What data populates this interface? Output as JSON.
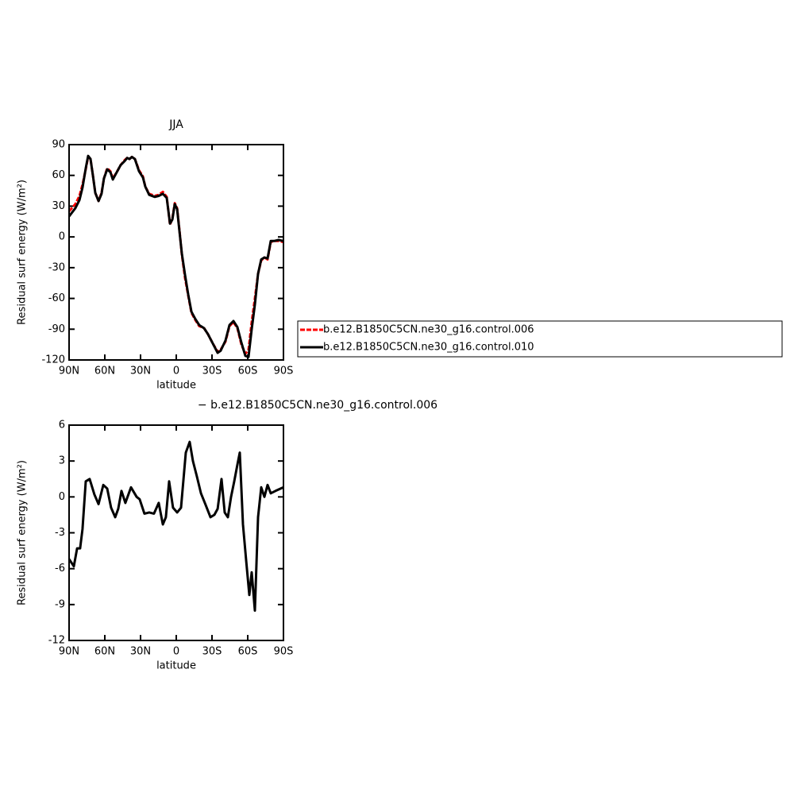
{
  "chart_data": [
    {
      "type": "line",
      "title": "JJA",
      "xlabel": "latitude",
      "ylabel": "Residual surf energy (W/m²)",
      "x": [
        90,
        84.7,
        81.3,
        78.7,
        76,
        74,
        72,
        70,
        68,
        65.3,
        62.7,
        60.7,
        58,
        55.3,
        53.3,
        50,
        46.7,
        43.3,
        41.3,
        39.3,
        37.3,
        34.7,
        31.3,
        28,
        26,
        22.7,
        18,
        14.7,
        11.3,
        8,
        5.3,
        3.3,
        1.3,
        -0.7,
        -2.7,
        -4.7,
        -7.3,
        -10,
        -12.7,
        -16,
        -19.3,
        -23.3,
        -26.7,
        -30.7,
        -34.7,
        -37.3,
        -41.3,
        -44.7,
        -48,
        -51.3,
        -54.7,
        -58,
        -60.7,
        -63.3,
        -66,
        -68.7,
        -71.3,
        -74,
        -76.7,
        -79.3,
        -82,
        -86,
        -90
      ],
      "series": [
        {
          "name": "b.e12.B1850C5CN.ne30_g16.control.006",
          "color": "#ff0000",
          "style": "dashed",
          "values": [
            25,
            32,
            40,
            51,
            66,
            78,
            76,
            60,
            43,
            35,
            43,
            57,
            67,
            64,
            57,
            63,
            70,
            75,
            77,
            76,
            78,
            76,
            65,
            59,
            49,
            42,
            40,
            41,
            44,
            39,
            12,
            18,
            33,
            28,
            6,
            -17,
            -40,
            -57,
            -74,
            -81,
            -87,
            -89,
            -95,
            -104,
            -112,
            -110,
            -102,
            -87,
            -83,
            -89,
            -105,
            -114,
            -110,
            -83,
            -60,
            -36,
            -23,
            -20,
            -22,
            -5,
            -4,
            -4,
            -5
          ]
        },
        {
          "name": "b.e12.B1850C5CN.ne30_g16.control.010",
          "color": "#000000",
          "style": "solid",
          "values": [
            20,
            28,
            36,
            48,
            67,
            79,
            76,
            60,
            43,
            35,
            42,
            57,
            66,
            63,
            56,
            63,
            70,
            74,
            77,
            76,
            78,
            76,
            64,
            58,
            49,
            41,
            39,
            40,
            42,
            38,
            13,
            17,
            32,
            27,
            5,
            -16,
            -37,
            -56,
            -73,
            -80,
            -86,
            -89,
            -95,
            -104,
            -113,
            -111,
            -101,
            -86,
            -82,
            -88,
            -103,
            -116,
            -117,
            -90,
            -66,
            -36,
            -22,
            -20,
            -21,
            -4,
            -4,
            -3,
            -4
          ]
        }
      ],
      "xlim": [
        90,
        -90
      ],
      "ylim": [
        -120,
        90
      ],
      "xticks": [
        {
          "value": 90,
          "label": "90N"
        },
        {
          "value": 60,
          "label": "60N"
        },
        {
          "value": 30,
          "label": "30N"
        },
        0,
        {
          "value": -30,
          "label": "30S"
        },
        {
          "value": -60,
          "label": "60S"
        },
        {
          "value": -90,
          "label": "90S"
        }
      ],
      "yticks": [
        -120,
        -90,
        -60,
        -30,
        0,
        30,
        60,
        90
      ],
      "legend": "right"
    },
    {
      "type": "line",
      "title": "− b.e12.B1850C5CN.ne30_g16.control.006",
      "xlabel": "latitude",
      "ylabel": "Residual surf energy (W/m²)",
      "x": [
        90,
        86,
        83.3,
        80.7,
        78.7,
        76,
        72.7,
        68.7,
        65.3,
        61.3,
        58,
        54.7,
        51.3,
        48.7,
        46,
        42.7,
        38,
        33.3,
        30.7,
        26.7,
        22.7,
        18.7,
        14.7,
        11.3,
        8.7,
        6,
        2.7,
        -0.7,
        -4,
        -8,
        -11.3,
        -14,
        -17.3,
        -20.7,
        -24,
        -28.7,
        -32,
        -34.7,
        -38,
        -40.7,
        -43.3,
        -46,
        -48.7,
        -51.3,
        -53.3,
        -56,
        -58.7,
        -61.3,
        -63.3,
        -66,
        -68.7,
        -71.3,
        -74,
        -76.7,
        -79.3,
        -83.3,
        -90
      ],
      "series": [
        {
          "color": "#000000",
          "style": "solid",
          "values": [
            -5.2,
            -5.8,
            -4.3,
            -4.3,
            -2.7,
            1.3,
            1.5,
            0.2,
            -0.6,
            1.0,
            0.7,
            -0.9,
            -1.7,
            -1.0,
            0.5,
            -0.5,
            0.8,
            0,
            -0.2,
            -1.4,
            -1.3,
            -1.4,
            -0.5,
            -2.3,
            -1.7,
            1.3,
            -0.9,
            -1.3,
            -0.9,
            3.7,
            4.6,
            3.0,
            1.7,
            0.3,
            -0.5,
            -1.7,
            -1.5,
            -1.0,
            1.5,
            -1.3,
            -1.7,
            0,
            1.3,
            2.7,
            3.7,
            -2.3,
            -5.3,
            -8.2,
            -6.3,
            -9.5,
            -1.7,
            0.8,
            0,
            1.0,
            0.3,
            0.5,
            0.8
          ]
        }
      ],
      "xlim": [
        90,
        -90
      ],
      "ylim": [
        -12,
        6
      ],
      "xticks": [
        {
          "value": 90,
          "label": "90N"
        },
        {
          "value": 60,
          "label": "60N"
        },
        {
          "value": 30,
          "label": "30N"
        },
        0,
        {
          "value": -30,
          "label": "30S"
        },
        {
          "value": -60,
          "label": "60S"
        },
        {
          "value": -90,
          "label": "90S"
        }
      ],
      "yticks": [
        -12,
        -9,
        -6,
        -3,
        0,
        3,
        6
      ]
    }
  ]
}
